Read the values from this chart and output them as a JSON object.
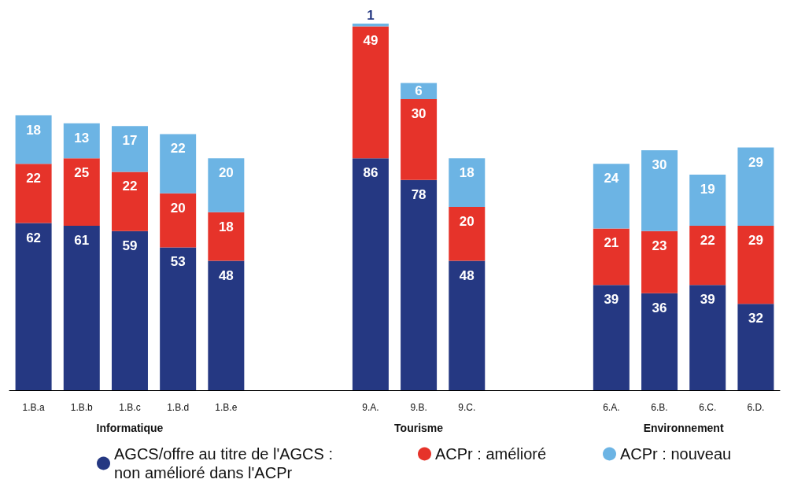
{
  "chart_data": {
    "type": "bar",
    "stacked": true,
    "data_labels": true,
    "legend": "bottom",
    "marker": "circle",
    "categories": [
      "1.B.a",
      "1.B.b",
      "1.B.c",
      "1.B.d",
      "1.B.e",
      null,
      null,
      "9.A.",
      "9.B.",
      "9.C.",
      null,
      null,
      "6.A.",
      "6.B.",
      "6.C.",
      "6.D."
    ],
    "series": [
      {
        "name": "AGCS/offre au titre de l'AGCS : non amélioré dans l'ACPr",
        "color": "#253882",
        "values": [
          62,
          61,
          59,
          53,
          48,
          null,
          null,
          86,
          78,
          48,
          null,
          null,
          39,
          36,
          39,
          32
        ]
      },
      {
        "name": "ACPr : amélioré",
        "color": "#e6332a",
        "values": [
          22,
          25,
          22,
          20,
          18,
          null,
          null,
          49,
          30,
          20,
          null,
          null,
          21,
          23,
          22,
          29
        ]
      },
      {
        "name": "ACPr : nouveau",
        "color": "#6cb4e4",
        "values": [
          18,
          13,
          17,
          22,
          20,
          null,
          null,
          1,
          6,
          18,
          null,
          null,
          24,
          30,
          19,
          29
        ]
      }
    ],
    "annotations": [
      "Informatique",
      "Tourisme",
      "Environnement"
    ]
  }
}
